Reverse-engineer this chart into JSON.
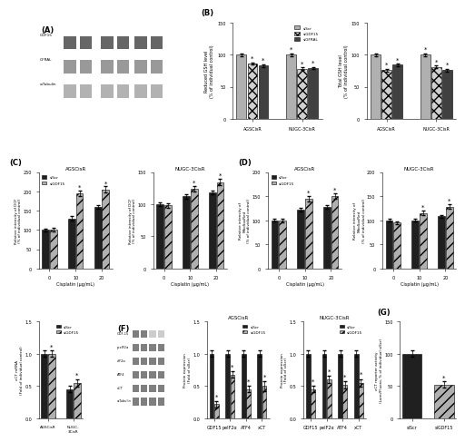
{
  "panel_B_left": {
    "title": "Reduced GSH level",
    "ylabel": "Reduced GSH level\n(% of individual control)",
    "groups": [
      "AGSCisR",
      "NUGC-3CisR"
    ],
    "series": [
      "siScr",
      "siGDF15",
      "siGFRAL"
    ],
    "values": [
      [
        100,
        86,
        83
      ],
      [
        100,
        78,
        79
      ]
    ],
    "errors": [
      [
        2,
        2,
        2
      ],
      [
        2,
        2,
        2
      ]
    ],
    "ylim": [
      0,
      150
    ],
    "yticks": [
      0,
      50,
      100,
      150
    ],
    "colors": [
      "#b0b0b0",
      "#d0d0d0",
      "#404040"
    ],
    "hatches": [
      "",
      "xxx",
      ""
    ]
  },
  "panel_B_right": {
    "title": "Total GSH level",
    "ylabel": "Total GSH level\n(% of individual control)",
    "groups": [
      "AGSCisR",
      "NUGC-3CisR"
    ],
    "series": [
      "siScr",
      "siGDF15",
      "siGFRAL"
    ],
    "values": [
      [
        100,
        76,
        84
      ],
      [
        100,
        81,
        76
      ]
    ],
    "errors": [
      [
        2,
        2,
        2
      ],
      [
        2,
        2,
        2
      ]
    ],
    "ylim": [
      0,
      150
    ],
    "yticks": [
      0,
      50,
      100,
      150
    ],
    "colors": [
      "#b0b0b0",
      "#d0d0d0",
      "#404040"
    ],
    "hatches": [
      "",
      "xxx",
      ""
    ]
  },
  "panel_C_left": {
    "title": "AGSCisR",
    "ylabel": "Relative intensity of DCF\n(% of individual control)",
    "xlabel": "Cisplatin (μg/mL)",
    "series": [
      "siScr",
      "siGDF15"
    ],
    "xvals": [
      0,
      10,
      20
    ],
    "values": [
      [
        100,
        130,
        160
      ],
      [
        100,
        195,
        205
      ]
    ],
    "errors": [
      [
        3,
        5,
        5
      ],
      [
        5,
        8,
        8
      ]
    ],
    "ylim": [
      0,
      250
    ],
    "yticks": [
      0,
      50,
      100,
      150,
      200,
      250
    ],
    "colors": [
      "#202020",
      "#b0b0b0"
    ],
    "hatches": [
      "",
      "///"
    ]
  },
  "panel_C_right": {
    "title": "NUGC-3CisR",
    "ylabel": "Relative intensity of DCF\n(% of individual control)",
    "xlabel": "Cisplatin (μg/mL)",
    "series": [
      "siScr",
      "siGDF15"
    ],
    "xvals": [
      0,
      10,
      20
    ],
    "values": [
      [
        100,
        112,
        118
      ],
      [
        98,
        124,
        134
      ]
    ],
    "errors": [
      [
        3,
        3,
        3
      ],
      [
        3,
        4,
        5
      ]
    ],
    "ylim": [
      0,
      150
    ],
    "yticks": [
      0,
      50,
      100,
      150
    ],
    "colors": [
      "#202020",
      "#b0b0b0"
    ],
    "hatches": [
      "",
      "///"
    ]
  },
  "panel_D_left": {
    "title": "AGSCisR",
    "ylabel": "Relative intensity of\nMitoSoxRed\n(% of individual control)",
    "xlabel": "Cisplatin (μg/mL)",
    "series": [
      "siScr",
      "siGDF15"
    ],
    "xvals": [
      0,
      10,
      20
    ],
    "values": [
      [
        100,
        122,
        128
      ],
      [
        100,
        145,
        150
      ]
    ],
    "errors": [
      [
        3,
        4,
        4
      ],
      [
        4,
        6,
        6
      ]
    ],
    "ylim": [
      0,
      200
    ],
    "yticks": [
      0,
      50,
      100,
      150,
      200
    ],
    "colors": [
      "#202020",
      "#b0b0b0"
    ],
    "hatches": [
      "",
      "///"
    ]
  },
  "panel_D_right": {
    "title": "NUGC-3CisR",
    "ylabel": "Relative intensity of\nMitoSoxRed\n(% of individual control)",
    "xlabel": "Cisplatin (μg/mL)",
    "series": [
      "siScr",
      "siGDF15"
    ],
    "xvals": [
      0,
      10,
      20
    ],
    "values": [
      [
        100,
        100,
        108
      ],
      [
        95,
        115,
        128
      ]
    ],
    "errors": [
      [
        3,
        3,
        3
      ],
      [
        3,
        5,
        5
      ]
    ],
    "ylim": [
      0,
      200
    ],
    "yticks": [
      0,
      50,
      100,
      150,
      200
    ],
    "colors": [
      "#202020",
      "#b0b0b0"
    ],
    "hatches": [
      "",
      "///"
    ]
  },
  "panel_E": {
    "ylabel": "xCT mRNA\n(Fold of individual control)",
    "groups": [
      "AGSCisR",
      "NUGC-3CisR"
    ],
    "series": [
      "siScr",
      "siGDF15"
    ],
    "values": [
      [
        1.0,
        0.45
      ],
      [
        1.0,
        0.55
      ]
    ],
    "errors": [
      [
        0.05,
        0.05
      ],
      [
        0.05,
        0.06
      ]
    ],
    "ylim": [
      0,
      1.5
    ],
    "yticks": [
      0.0,
      0.5,
      1.0,
      1.5
    ],
    "colors": [
      "#202020",
      "#b0b0b0"
    ],
    "hatches": [
      "",
      "///"
    ]
  },
  "panel_F_agscis": {
    "title": "AGSCisR",
    "ylabel": "Protein expression\n(Fold of siScr)",
    "xticks": [
      "GDF15",
      "peIF2α",
      "ATF4",
      "xCT"
    ],
    "series": [
      "siScr",
      "siGDF15"
    ],
    "values": [
      [
        1.0,
        1.0,
        1.0,
        1.0
      ],
      [
        0.22,
        0.68,
        0.45,
        0.5
      ]
    ],
    "errors": [
      [
        0.05,
        0.05,
        0.05,
        0.05
      ],
      [
        0.05,
        0.05,
        0.05,
        0.08
      ]
    ],
    "ylim": [
      0,
      1.5
    ],
    "yticks": [
      0.0,
      0.5,
      1.0,
      1.5
    ],
    "colors": [
      "#202020",
      "#b0b0b0"
    ],
    "hatches": [
      "",
      "///"
    ]
  },
  "panel_F_nugc": {
    "title": "NUGC-3CisR",
    "ylabel": "Protein expression\n(Fold of siScr)",
    "xticks": [
      "GDF15",
      "peIF2α",
      "ATF4",
      "xCT"
    ],
    "series": [
      "siScr",
      "siGDF15"
    ],
    "values": [
      [
        1.0,
        1.0,
        1.0,
        1.0
      ],
      [
        0.45,
        0.6,
        0.52,
        0.55
      ]
    ],
    "errors": [
      [
        0.05,
        0.05,
        0.05,
        0.05
      ],
      [
        0.05,
        0.06,
        0.06,
        0.06
      ]
    ],
    "ylim": [
      0,
      1.5
    ],
    "yticks": [
      0.0,
      0.5,
      1.0,
      1.5
    ],
    "colors": [
      "#202020",
      "#b0b0b0"
    ],
    "hatches": [
      "",
      "///"
    ]
  },
  "panel_G": {
    "title": "",
    "ylabel": "xCT reporter activity\n(Lumi/Fluoro, % of individual siScr)",
    "xticks": [
      "siScr",
      "siGDF15"
    ],
    "values": [
      100,
      52
    ],
    "errors": [
      5,
      5
    ],
    "ylim": [
      0,
      150
    ],
    "yticks": [
      0,
      50,
      100,
      150
    ],
    "colors": [
      "#202020",
      "#b0b0b0"
    ],
    "hatches": [
      "",
      "///"
    ]
  },
  "wb_band_colors": [
    "#cccccc",
    "#999999",
    "#666666",
    "#888888"
  ],
  "background_color": "#ffffff",
  "font_size": 5,
  "bar_width": 0.25
}
